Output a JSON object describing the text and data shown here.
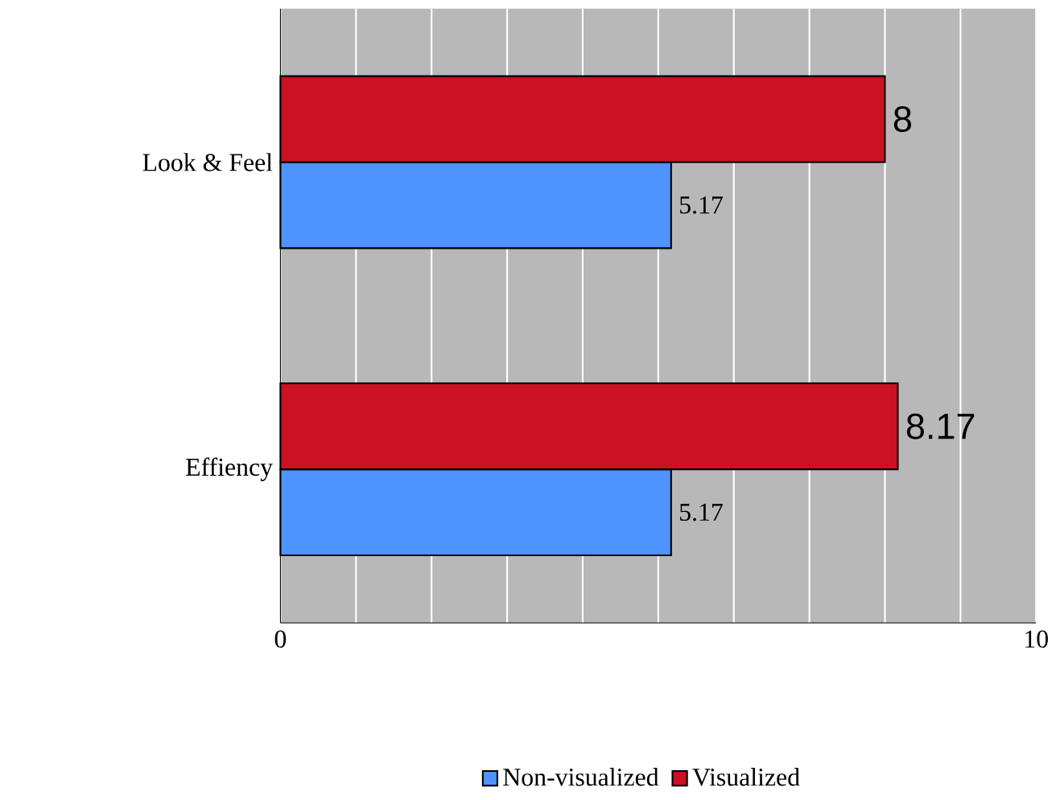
{
  "chart_data": {
    "type": "bar",
    "orientation": "horizontal",
    "categories": [
      "Look & Feel",
      "Effiency"
    ],
    "series": [
      {
        "name": "Non-visualized",
        "color": "#4d94ff",
        "values": [
          5.17,
          5.17
        ]
      },
      {
        "name": "Visualized",
        "color": "#cc1122",
        "values": [
          8,
          8.17
        ]
      }
    ],
    "xlim": [
      0,
      10
    ],
    "xticks": [
      0,
      {
        "value": 1,
        "label": null
      },
      {
        "value": 2,
        "label": null
      },
      {
        "value": 3,
        "label": null
      },
      {
        "value": 4,
        "label": null
      },
      {
        "value": 5,
        "label": null
      },
      {
        "value": 6,
        "label": null
      },
      {
        "value": 7,
        "label": null
      },
      {
        "value": 8,
        "label": null
      },
      {
        "value": 9,
        "label": null
      },
      10
    ],
    "grid": "x",
    "legend": "bottom",
    "data_labels": true
  }
}
